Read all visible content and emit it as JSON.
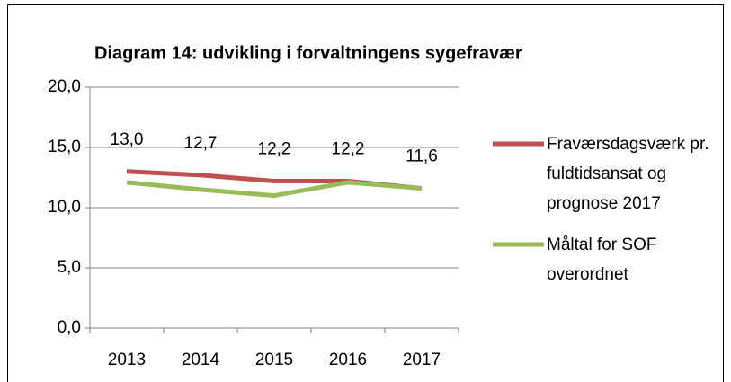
{
  "chart_data": {
    "type": "line",
    "title": "Diagram 14: udvikling i forvaltningens sygefravær",
    "categories": [
      "2013",
      "2014",
      "2015",
      "2016",
      "2017"
    ],
    "series": [
      {
        "name": "Fraværsdagsværk pr. fuldtidsansat og prognose 2017",
        "color": "#c0504d",
        "values": [
          13.0,
          12.7,
          12.2,
          12.2,
          11.6
        ],
        "value_labels": [
          "13,0",
          "12,7",
          "12,2",
          "12,2",
          "11,6"
        ]
      },
      {
        "name": "Måltal for SOF overordnet",
        "color": "#9bbb59",
        "values": [
          12.1,
          11.5,
          11.0,
          12.1,
          11.6
        ]
      }
    ],
    "ylim": [
      0,
      20
    ],
    "yticks": [
      {
        "value": 0,
        "label": "0,0"
      },
      {
        "value": 5,
        "label": "5,0"
      },
      {
        "value": 10,
        "label": "10,0"
      },
      {
        "value": 15,
        "label": "15,0"
      },
      {
        "value": 20,
        "label": "20,0"
      }
    ],
    "grid": true,
    "legend": "right"
  }
}
